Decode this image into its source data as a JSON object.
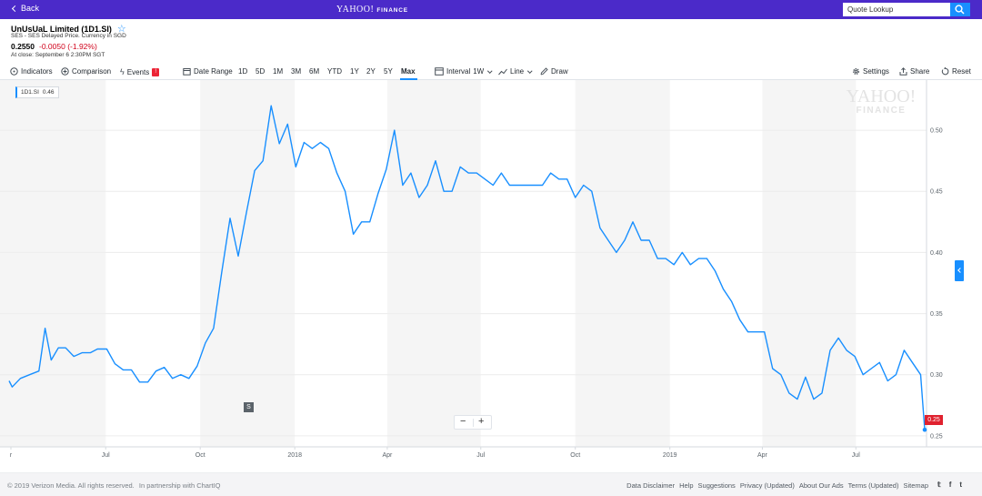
{
  "topbar": {
    "back_label": "Back",
    "brand_yahoo": "YAHOO!",
    "brand_finance": "FINANCE",
    "search_placeholder": "Quote Lookup",
    "brand_color": "#4b2ac9",
    "search_icon": "search-icon"
  },
  "quote": {
    "name": "UnUsUaL Limited (1D1.SI)",
    "exchange": "SES - SES Delayed Price. Currency in SGD",
    "price": "0.2550",
    "change": "-0.0050 (-1.92%)",
    "close_time": "At close: September 6 2:30PM SGT"
  },
  "toolbar": {
    "indicators": "Indicators",
    "comparison": "Comparison",
    "events": "Events",
    "date_range": "Date Range",
    "ranges": [
      "1D",
      "5D",
      "1M",
      "3M",
      "6M",
      "YTD",
      "1Y",
      "2Y",
      "5Y",
      "Max"
    ],
    "selected_range": "Max",
    "interval_label": "Interval",
    "interval_value": "1W",
    "chart_type": "Line",
    "draw": "Draw",
    "settings": "Settings",
    "share": "Share",
    "reset": "Reset"
  },
  "chart": {
    "legend_symbol": "1D1.SI",
    "legend_value": "0.46",
    "watermark_top": "YAHOO!",
    "watermark_bottom": "FINANCE",
    "split_marker": "S",
    "zoom_out": "−",
    "zoom_in": "+",
    "last_price": "0.25"
  },
  "chart_data": {
    "type": "line",
    "title": "",
    "xlabel": "",
    "ylabel": "",
    "x_ticks": [
      "r",
      "Jul",
      "Oct",
      "2018",
      "Apr",
      "Jul",
      "Oct",
      "2019",
      "Apr",
      "Jul"
    ],
    "y_ticks": [
      "0.25",
      "0.30",
      "0.35",
      "0.40",
      "0.45",
      "0.50"
    ],
    "ylim": [
      0.241,
      0.541
    ],
    "x_range": [
      "2017-03-29",
      "2019-09-06"
    ],
    "grid": true,
    "line_color": "#188fff",
    "series": [
      {
        "name": "1D1.SI",
        "points": [
          [
            "2017-03-29",
            0.295
          ],
          [
            "2017-04-01",
            0.29
          ],
          [
            "2017-04-09",
            0.297
          ],
          [
            "2017-04-18",
            0.3
          ],
          [
            "2017-04-27",
            0.303
          ],
          [
            "2017-05-03",
            0.338
          ],
          [
            "2017-05-09",
            0.312
          ],
          [
            "2017-05-16",
            0.322
          ],
          [
            "2017-05-23",
            0.322
          ],
          [
            "2017-05-31",
            0.315
          ],
          [
            "2017-06-08",
            0.318
          ],
          [
            "2017-06-16",
            0.318
          ],
          [
            "2017-06-23",
            0.321
          ],
          [
            "2017-07-02",
            0.321
          ],
          [
            "2017-07-10",
            0.309
          ],
          [
            "2017-07-18",
            0.304
          ],
          [
            "2017-07-26",
            0.304
          ],
          [
            "2017-08-03",
            0.294
          ],
          [
            "2017-08-11",
            0.294
          ],
          [
            "2017-08-19",
            0.303
          ],
          [
            "2017-08-27",
            0.306
          ],
          [
            "2017-09-04",
            0.297
          ],
          [
            "2017-09-12",
            0.3
          ],
          [
            "2017-09-20",
            0.297
          ],
          [
            "2017-09-28",
            0.307
          ],
          [
            "2017-10-06",
            0.326
          ],
          [
            "2017-10-14",
            0.338
          ],
          [
            "2017-10-22",
            0.384
          ],
          [
            "2017-10-30",
            0.428
          ],
          [
            "2017-11-07",
            0.397
          ],
          [
            "2017-11-15",
            0.433
          ],
          [
            "2017-11-23",
            0.467
          ],
          [
            "2017-12-01",
            0.475
          ],
          [
            "2017-12-09",
            0.52
          ],
          [
            "2017-12-17",
            0.489
          ],
          [
            "2017-12-25",
            0.505
          ],
          [
            "2018-01-02",
            0.47
          ],
          [
            "2018-01-10",
            0.49
          ],
          [
            "2018-01-18",
            0.485
          ],
          [
            "2018-01-26",
            0.49
          ],
          [
            "2018-02-03",
            0.485
          ],
          [
            "2018-02-11",
            0.465
          ],
          [
            "2018-02-19",
            0.45
          ],
          [
            "2018-02-27",
            0.415
          ],
          [
            "2018-03-07",
            0.425
          ],
          [
            "2018-03-15",
            0.425
          ],
          [
            "2018-03-23",
            0.448
          ],
          [
            "2018-03-31",
            0.468
          ],
          [
            "2018-04-08",
            0.5
          ],
          [
            "2018-04-16",
            0.455
          ],
          [
            "2018-04-24",
            0.465
          ],
          [
            "2018-05-02",
            0.445
          ],
          [
            "2018-05-10",
            0.455
          ],
          [
            "2018-05-18",
            0.475
          ],
          [
            "2018-05-26",
            0.45
          ],
          [
            "2018-06-03",
            0.45
          ],
          [
            "2018-06-11",
            0.47
          ],
          [
            "2018-06-19",
            0.465
          ],
          [
            "2018-06-27",
            0.465
          ],
          [
            "2018-07-05",
            0.46
          ],
          [
            "2018-07-13",
            0.455
          ],
          [
            "2018-07-21",
            0.465
          ],
          [
            "2018-07-29",
            0.455
          ],
          [
            "2018-08-06",
            0.455
          ],
          [
            "2018-08-14",
            0.455
          ],
          [
            "2018-08-22",
            0.455
          ],
          [
            "2018-08-30",
            0.455
          ],
          [
            "2018-09-07",
            0.465
          ],
          [
            "2018-09-15",
            0.46
          ],
          [
            "2018-09-23",
            0.46
          ],
          [
            "2018-10-01",
            0.445
          ],
          [
            "2018-10-09",
            0.455
          ],
          [
            "2018-10-17",
            0.45
          ],
          [
            "2018-10-25",
            0.42
          ],
          [
            "2018-11-02",
            0.41
          ],
          [
            "2018-11-10",
            0.4
          ],
          [
            "2018-11-18",
            0.41
          ],
          [
            "2018-11-26",
            0.425
          ],
          [
            "2018-12-04",
            0.41
          ],
          [
            "2018-12-12",
            0.41
          ],
          [
            "2018-12-20",
            0.395
          ],
          [
            "2018-12-28",
            0.395
          ],
          [
            "2019-01-05",
            0.39
          ],
          [
            "2019-01-13",
            0.4
          ],
          [
            "2019-01-21",
            0.39
          ],
          [
            "2019-01-29",
            0.395
          ],
          [
            "2019-02-06",
            0.395
          ],
          [
            "2019-02-14",
            0.385
          ],
          [
            "2019-02-22",
            0.37
          ],
          [
            "2019-03-02",
            0.36
          ],
          [
            "2019-03-10",
            0.345
          ],
          [
            "2019-03-18",
            0.335
          ],
          [
            "2019-03-26",
            0.335
          ],
          [
            "2019-04-03",
            0.335
          ],
          [
            "2019-04-11",
            0.305
          ],
          [
            "2019-04-19",
            0.3
          ],
          [
            "2019-04-27",
            0.285
          ],
          [
            "2019-05-05",
            0.28
          ],
          [
            "2019-05-13",
            0.298
          ],
          [
            "2019-05-21",
            0.28
          ],
          [
            "2019-05-29",
            0.285
          ],
          [
            "2019-06-06",
            0.32
          ],
          [
            "2019-06-14",
            0.33
          ],
          [
            "2019-06-22",
            0.32
          ],
          [
            "2019-06-30",
            0.315
          ],
          [
            "2019-07-08",
            0.3
          ],
          [
            "2019-07-16",
            0.305
          ],
          [
            "2019-07-24",
            0.31
          ],
          [
            "2019-08-01",
            0.295
          ],
          [
            "2019-08-09",
            0.3
          ],
          [
            "2019-08-17",
            0.32
          ],
          [
            "2019-08-25",
            0.31
          ],
          [
            "2019-09-02",
            0.3
          ],
          [
            "2019-09-06",
            0.255
          ]
        ]
      }
    ]
  },
  "footer": {
    "copyright": "© 2019 Verizon Media. All rights reserved.",
    "partnership": "In partnership with ChartIQ",
    "links": [
      "Data Disclaimer",
      "Help",
      "Suggestions",
      "Privacy (Updated)",
      "About Our Ads",
      "Terms (Updated)",
      "Sitemap"
    ],
    "social": [
      "twitter-icon",
      "facebook-icon",
      "tumblr-icon"
    ]
  }
}
